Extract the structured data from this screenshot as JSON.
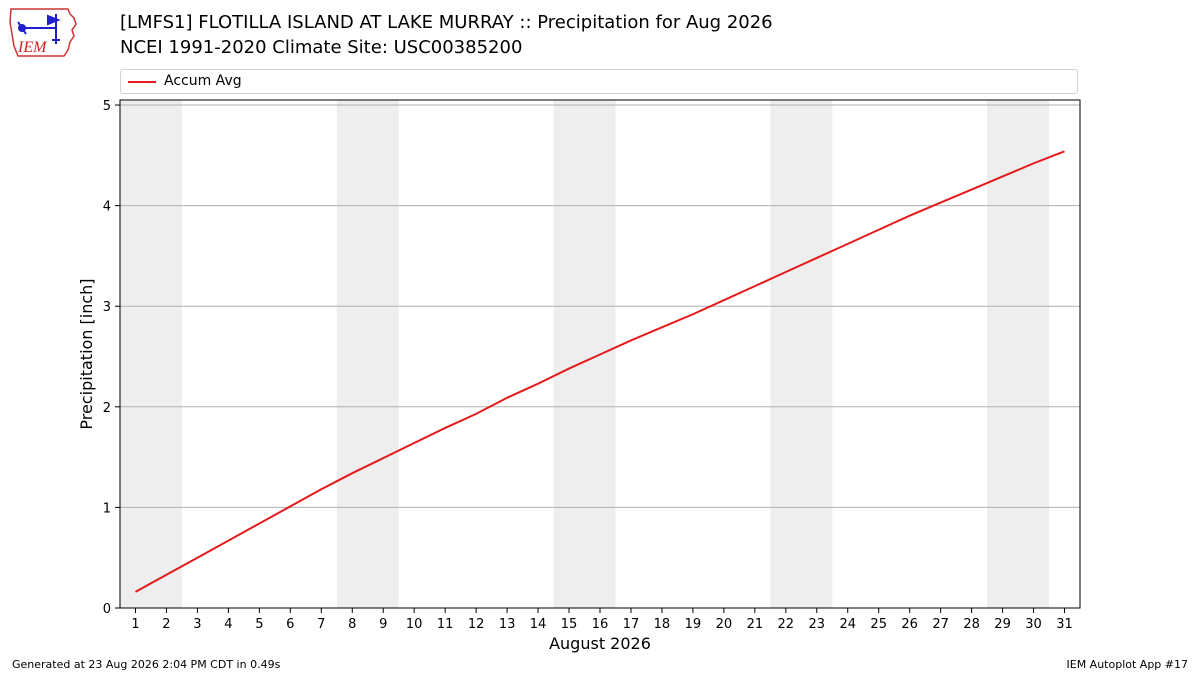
{
  "header": {
    "logo_text": "IEM",
    "title": "[LMFS1] FLOTILLA ISLAND AT LAKE MURRAY :: Precipitation for Aug 2026",
    "subtitle": "NCEI 1991-2020 Climate Site: USC00385200"
  },
  "footer": {
    "generated": "Generated at 23 Aug 2026 2:04 PM CDT in 0.49s",
    "app": "IEM Autoplot App #17"
  },
  "colors": {
    "line": "#e41a1c",
    "weekend_shade": "#eeeeee",
    "grid": "#b0b0b0",
    "logo_outline": "#cc3333",
    "logo_text": "#cc2222",
    "logo_icon": "#1f1fcc"
  },
  "chart_data": {
    "type": "line",
    "title": "[LMFS1] FLOTILLA ISLAND AT LAKE MURRAY :: Precipitation for Aug 2026",
    "subtitle": "NCEI 1991-2020 Climate Site: USC00385200",
    "xlabel": "August 2026",
    "ylabel": "Precipitation [inch]",
    "xlim": [
      0.5,
      31.5
    ],
    "ylim": [
      0,
      5.05
    ],
    "x_ticks": [
      1,
      2,
      3,
      4,
      5,
      6,
      7,
      8,
      9,
      10,
      11,
      12,
      13,
      14,
      15,
      16,
      17,
      18,
      19,
      20,
      21,
      22,
      23,
      24,
      25,
      26,
      27,
      28,
      29,
      30,
      31
    ],
    "y_ticks": [
      0,
      1,
      2,
      3,
      4,
      5
    ],
    "grid": "y",
    "legend_position": "top",
    "weekend_shading": [
      [
        1,
        2
      ],
      [
        8,
        9
      ],
      [
        15,
        16
      ],
      [
        22,
        23
      ],
      [
        29,
        30
      ]
    ],
    "series": [
      {
        "name": "Accum Avg",
        "x": [
          1,
          2,
          3,
          4,
          5,
          6,
          7,
          8,
          9,
          10,
          11,
          12,
          13,
          14,
          15,
          16,
          17,
          18,
          19,
          20,
          21,
          22,
          23,
          24,
          25,
          26,
          27,
          28,
          29,
          30,
          31
        ],
        "values": [
          0.16,
          0.33,
          0.5,
          0.67,
          0.84,
          1.01,
          1.18,
          1.34,
          1.49,
          1.64,
          1.79,
          1.93,
          2.09,
          2.23,
          2.38,
          2.52,
          2.66,
          2.79,
          2.92,
          3.06,
          3.2,
          3.34,
          3.48,
          3.62,
          3.76,
          3.9,
          4.03,
          4.16,
          4.29,
          4.42,
          4.54
        ]
      }
    ]
  }
}
